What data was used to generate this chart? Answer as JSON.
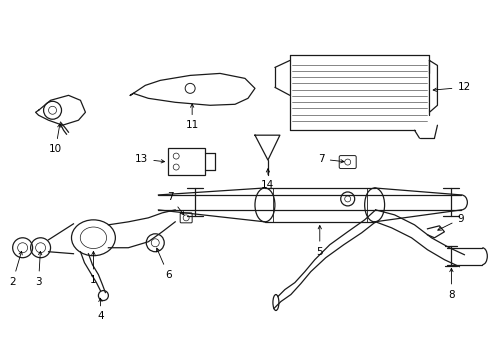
{
  "title": "",
  "bg_color": "#ffffff",
  "line_color": "#1a1a1a",
  "fig_width": 4.89,
  "fig_height": 3.6,
  "dpi": 100
}
